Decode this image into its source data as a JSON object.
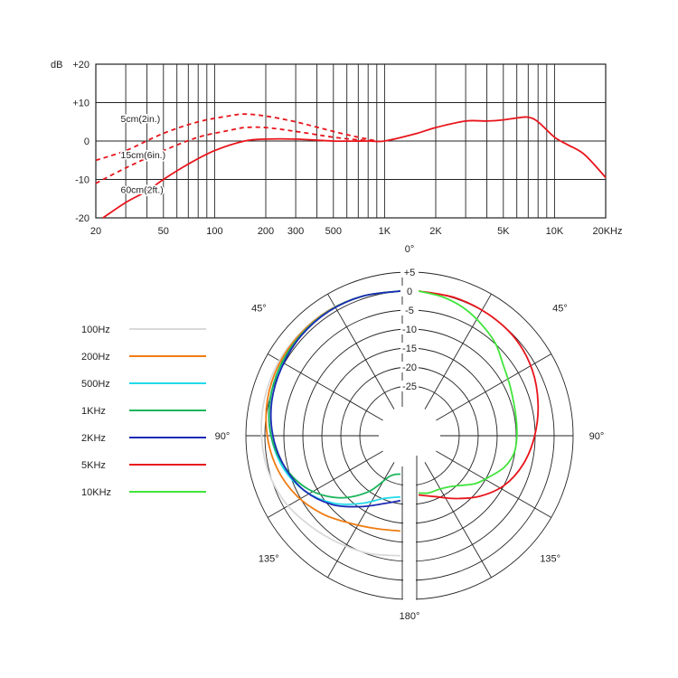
{
  "chart_data": [
    {
      "type": "line",
      "title": "",
      "x_scale": "log",
      "xlim": [
        20,
        20000
      ],
      "ylim": [
        -20,
        20
      ],
      "grid": true,
      "ylabel": "dB",
      "y_ticks": [
        20,
        10,
        0,
        -10,
        -20
      ],
      "y_tick_labels": [
        "+20",
        "+10",
        "0",
        "-10",
        "-20"
      ],
      "x_tick_labels": [
        {
          "value": 20,
          "label": "20"
        },
        {
          "value": 50,
          "label": "50"
        },
        {
          "value": 100,
          "label": "100"
        },
        {
          "value": 200,
          "label": "200"
        },
        {
          "value": 300,
          "label": "300"
        },
        {
          "value": 500,
          "label": "500"
        },
        {
          "value": 1000,
          "label": "1K"
        },
        {
          "value": 2000,
          "label": "2K"
        },
        {
          "value": 5000,
          "label": "5K"
        },
        {
          "value": 10000,
          "label": "10K"
        },
        {
          "value": 20000,
          "label": "20KHz"
        }
      ],
      "x_grid": [
        20,
        30,
        40,
        50,
        60,
        70,
        80,
        90,
        100,
        200,
        300,
        400,
        500,
        600,
        700,
        800,
        900,
        1000,
        2000,
        3000,
        4000,
        5000,
        6000,
        7000,
        8000,
        9000,
        10000,
        20000
      ],
      "color": "#e8141b",
      "series": [
        {
          "name": "5cm(2in.)",
          "style": "dashed",
          "label_at": {
            "x": 28,
            "y": 5
          },
          "x": [
            20,
            30,
            50,
            80,
            120,
            150,
            200,
            300,
            500,
            700,
            900
          ],
          "y": [
            -5,
            -2.5,
            2,
            5,
            6.5,
            7,
            6.5,
            5,
            2.5,
            1,
            0
          ]
        },
        {
          "name": "15cm(6in.)",
          "style": "dashed",
          "label_at": {
            "x": 28,
            "y": -4.5
          },
          "x": [
            20,
            30,
            50,
            80,
            120,
            150,
            200,
            300,
            500,
            700,
            900
          ],
          "y": [
            -11,
            -7,
            -2.5,
            1,
            2.7,
            3.5,
            3.5,
            2.5,
            1,
            0.3,
            0
          ]
        },
        {
          "name": "60cm(2ft.)",
          "style": "solid",
          "label_at": {
            "x": 28,
            "y": -13.5
          },
          "x": [
            22,
            30,
            40,
            50,
            70,
            100,
            150,
            200,
            300,
            500,
            800,
            1000,
            1500,
            2000,
            3000,
            4000,
            5000,
            6000,
            7000,
            8000,
            10000,
            12000,
            15000,
            20000
          ],
          "y": [
            -20,
            -16,
            -13,
            -10,
            -6,
            -2.5,
            0,
            0.5,
            0.5,
            0,
            0,
            0,
            1.8,
            3.5,
            5.2,
            5.2,
            5.5,
            6,
            6.2,
            5,
            1,
            -1,
            -3.5,
            -9.5
          ]
        }
      ]
    },
    {
      "type": "polar",
      "title": "",
      "r_ticks": [
        5,
        0,
        -5,
        -10,
        -15,
        -20,
        -25
      ],
      "r_tick_labels": [
        "+5",
        "0",
        "-5",
        "-10",
        "-15",
        "-20",
        "-25"
      ],
      "rlim": [
        -30,
        5
      ],
      "angle_labels": [
        {
          "angle": 0,
          "label": "0°"
        },
        {
          "angle": 45,
          "label": "45°",
          "side": "right"
        },
        {
          "angle": -45,
          "label": "45°",
          "side": "left"
        },
        {
          "angle": 90,
          "label": "90°",
          "side": "right"
        },
        {
          "angle": -90,
          "label": "90°",
          "side": "left"
        },
        {
          "angle": 135,
          "label": "135°",
          "side": "right"
        },
        {
          "angle": -135,
          "label": "135°",
          "side": "left"
        },
        {
          "angle": 180,
          "label": "180°"
        }
      ],
      "legend_placement": "left",
      "series": [
        {
          "name": "100Hz",
          "color": "#d9d9d9",
          "side": "left",
          "angles": [
            0,
            15,
            30,
            45,
            60,
            75,
            90,
            105,
            120,
            135,
            150,
            165,
            180
          ],
          "r": [
            0,
            0,
            0,
            -0.3,
            -0.6,
            -1,
            -1.5,
            -2,
            -3,
            -4.5,
            -5.5,
            -6,
            -6.5
          ]
        },
        {
          "name": "200Hz",
          "color": "#f07c12",
          "side": "left",
          "angles": [
            0,
            15,
            30,
            45,
            60,
            75,
            90,
            105,
            120,
            135,
            150,
            165,
            180
          ],
          "r": [
            0,
            0,
            -0.1,
            -0.5,
            -1,
            -1.8,
            -3,
            -4.5,
            -6.5,
            -9,
            -11.5,
            -12.8,
            -13
          ]
        },
        {
          "name": "500Hz",
          "color": "#22dbea",
          "side": "left",
          "angles": [
            0,
            15,
            30,
            45,
            60,
            75,
            90,
            105,
            120,
            135,
            150,
            165,
            180
          ],
          "r": [
            0,
            0,
            -0.2,
            -0.8,
            -1.6,
            -2.5,
            -4,
            -6,
            -9,
            -13,
            -17.5,
            -21,
            -22
          ]
        },
        {
          "name": "1KHz",
          "color": "#1bb55c",
          "side": "left",
          "angles": [
            0,
            15,
            30,
            45,
            60,
            75,
            90,
            105,
            120,
            135,
            150,
            165,
            180
          ],
          "r": [
            0,
            0,
            -0.2,
            -0.8,
            -1.5,
            -2.5,
            -4,
            -6.5,
            -10,
            -15,
            -21,
            -27,
            -28
          ]
        },
        {
          "name": "2KHz",
          "color": "#1b2ab4",
          "side": "left",
          "angles": [
            0,
            15,
            30,
            45,
            60,
            75,
            90,
            105,
            120,
            135,
            150,
            165,
            180
          ],
          "r": [
            0,
            0,
            -0.3,
            -1,
            -2,
            -3,
            -4.5,
            -6.5,
            -9,
            -12.5,
            -16.5,
            -19.5,
            -21
          ]
        },
        {
          "name": "5KHz",
          "color": "#e8141b",
          "side": "right",
          "angles": [
            0,
            15,
            30,
            45,
            60,
            75,
            90,
            105,
            120,
            135,
            150,
            165,
            180
          ],
          "r": [
            0,
            -0.5,
            -1.2,
            -2,
            -3.5,
            -5.5,
            -7.5,
            -9.5,
            -12,
            -15.5,
            -19,
            -21.5,
            -22.5
          ]
        },
        {
          "name": "10KHz",
          "color": "#41e43c",
          "side": "right",
          "angles": [
            0,
            10,
            20,
            30,
            40,
            50,
            60,
            70,
            80,
            90,
            100,
            110,
            120,
            130,
            140,
            150,
            160,
            170,
            180
          ],
          "r": [
            0,
            -1,
            -2.5,
            -4.5,
            -6.5,
            -9,
            -10.5,
            -11.5,
            -12,
            -12.2,
            -12.5,
            -14,
            -16.5,
            -18.5,
            -21,
            -22.5,
            -23,
            -22.8,
            -23
          ]
        }
      ]
    }
  ]
}
